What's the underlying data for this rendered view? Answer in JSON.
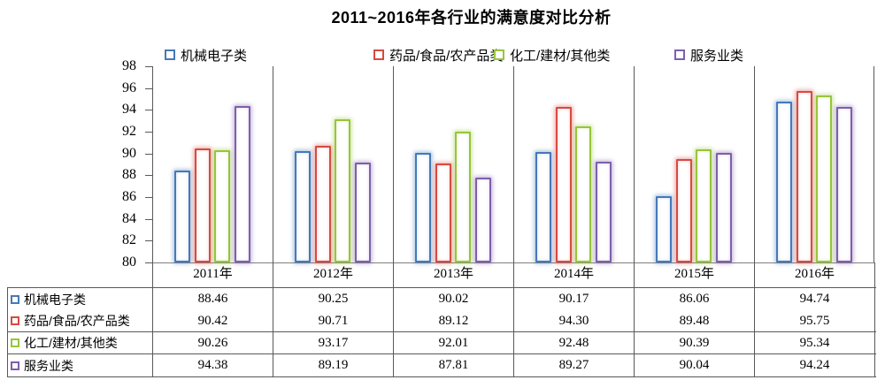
{
  "chart_data": {
    "type": "bar",
    "title": "2011~2016年各行业的满意度对比分析",
    "categories": [
      "2011年",
      "2012年",
      "2013年",
      "2014年",
      "2015年",
      "2016年"
    ],
    "series": [
      {
        "name": "机械电子类",
        "color": "#4579B8",
        "values": [
          88.46,
          90.25,
          90.02,
          90.17,
          86.06,
          94.74
        ]
      },
      {
        "name": "药品/食品/农产品类",
        "color": "#D64A42",
        "values": [
          90.42,
          90.71,
          89.12,
          94.3,
          89.48,
          95.75
        ]
      },
      {
        "name": "化工/建材/其他类",
        "color": "#97C53C",
        "values": [
          90.26,
          93.17,
          92.01,
          92.48,
          90.39,
          95.34
        ]
      },
      {
        "name": "服务业类",
        "color": "#7E5FAD",
        "values": [
          94.38,
          89.19,
          87.81,
          89.27,
          90.04,
          94.24
        ]
      }
    ],
    "ylim": [
      80,
      98
    ],
    "y_ticks": [
      98,
      96,
      94,
      92,
      90,
      88,
      86,
      84,
      82,
      80
    ],
    "grid": "vertical category separators only, no horizontal gridlines",
    "legend_position": "top",
    "data_table_shown": true,
    "bar_style": "white fill with colored outline and soft outer glow",
    "value_format": "2 decimal places"
  }
}
